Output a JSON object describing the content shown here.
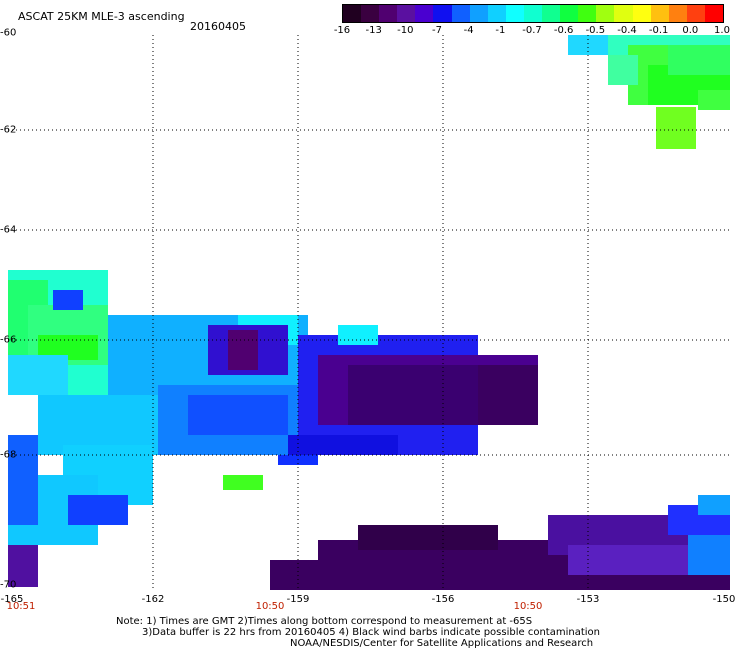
{
  "title": "ASCAT 25KM MLE-3 ascending",
  "date": "20160405",
  "colorbar": {
    "colors": [
      "#200020",
      "#3a0040",
      "#500070",
      "#5a10a0",
      "#4a00d0",
      "#1010f0",
      "#1060ff",
      "#10a0ff",
      "#10d0ff",
      "#10ffff",
      "#10ffd0",
      "#10ff90",
      "#10ff40",
      "#40ff10",
      "#a0ff10",
      "#e0ff10",
      "#ffff10",
      "#ffc010",
      "#ff8010",
      "#ff4010",
      "#ff0000"
    ],
    "ticks": [
      "-16",
      "-13",
      "-10",
      "-7",
      "-4",
      "-1",
      "-0.7",
      "-0.6",
      "-0.5",
      "-0.4",
      "-0.1",
      "0.0",
      "1.0"
    ]
  },
  "axes": {
    "y_ticks": [
      "-60",
      "-62",
      "-64",
      "-66",
      "-68",
      "-70"
    ],
    "x_ticks": [
      "-165",
      "-162",
      "-159",
      "-156",
      "-153",
      "-150"
    ]
  },
  "times": [
    "10:51",
    "10:50",
    "10:50"
  ],
  "notes": [
    "Note: 1) Times are GMT 2)Times along bottom correspond to measurement at -65S",
    "3)Data buffer is 22 hrs from 20160405 4) Black wind barbs indicate possible contamination",
    "NOAA/NESDIS/Center for Satellite Applications and Research"
  ]
}
